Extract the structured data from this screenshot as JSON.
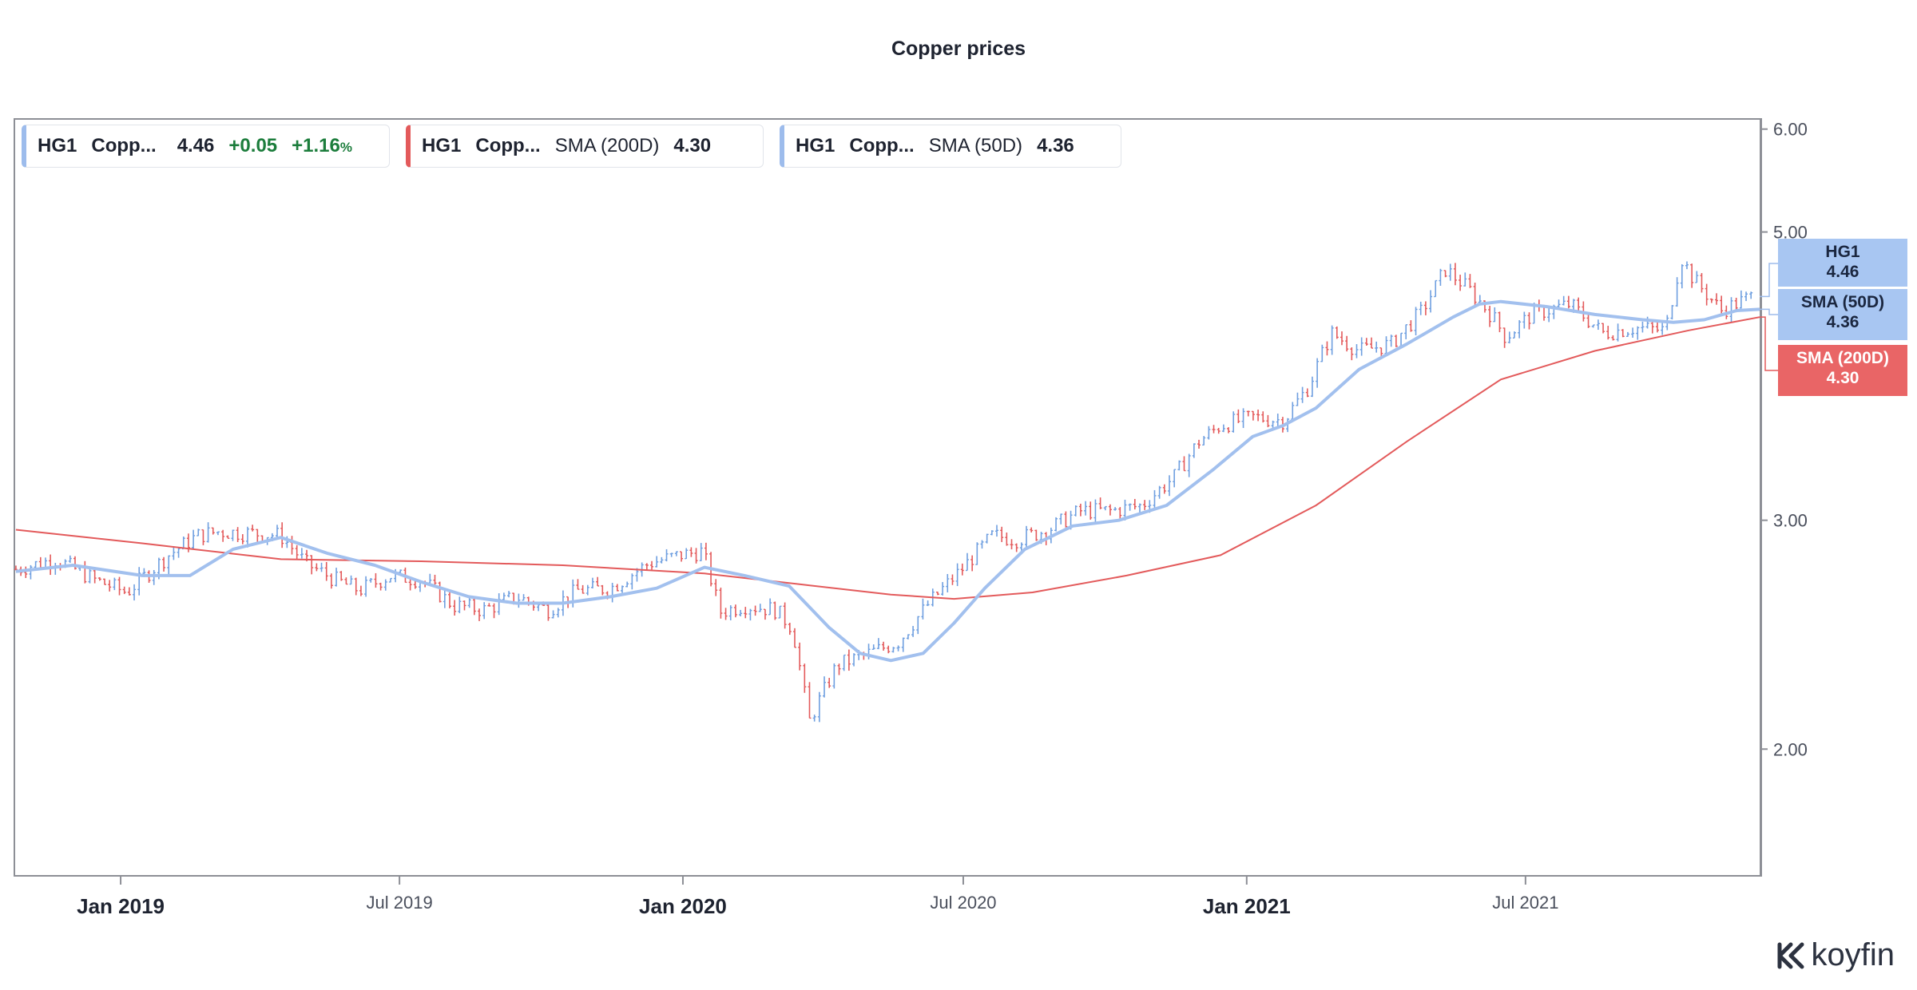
{
  "header": {
    "title": "Copper prices"
  },
  "legend": [
    {
      "ticker": "HG1",
      "name": "Copp...",
      "value": "4.46",
      "change": "+0.05",
      "change_pct": "+1.16",
      "pct_symbol": "%",
      "color": "#9dbcec"
    },
    {
      "ticker": "HG1",
      "name": "Copp...",
      "indicator": "SMA (200D)",
      "value": "4.30",
      "color": "#e35a5b"
    },
    {
      "ticker": "HG1",
      "name": "Copp...",
      "indicator": "SMA (50D)",
      "value": "4.36",
      "color": "#9dbcec"
    }
  ],
  "price_tags": [
    {
      "label": "HG1",
      "value": "4.46",
      "color": "#a8c6f2"
    },
    {
      "label": "SMA (50D)",
      "value": "4.36",
      "color": "#a8c6f2"
    },
    {
      "label": "SMA (200D)",
      "value": "4.30",
      "color": "#e96566"
    }
  ],
  "brand": {
    "name": "koyfin"
  },
  "chart_data": {
    "type": "line",
    "title": "Copper prices",
    "y_scale": "log",
    "ylim": [
      1.6,
      6.1
    ],
    "y_ticks": [
      "6.00",
      "5.00",
      "3.00",
      "2.00"
    ],
    "y_tick_values": [
      6.0,
      5.0,
      3.0,
      2.0
    ],
    "x_ticks": [
      {
        "label": "Jan 2019",
        "date": "2019-01-01",
        "major": true
      },
      {
        "label": "Jul 2019",
        "date": "2019-07-01",
        "major": false
      },
      {
        "label": "Jan 2020",
        "date": "2020-01-01",
        "major": true
      },
      {
        "label": "Jul 2020",
        "date": "2020-07-01",
        "major": false
      },
      {
        "label": "Jan 2021",
        "date": "2021-01-01",
        "major": true
      },
      {
        "label": "Jul 2021",
        "date": "2021-07-01",
        "major": false
      }
    ],
    "xlim": [
      "2018-10-24",
      "2021-11-30"
    ],
    "colors": {
      "up": "#6f9fe0",
      "down": "#e35a5b",
      "sma50": "#a2c0ee",
      "sma200": "#e35a5b"
    },
    "series": [
      {
        "name": "HG1",
        "kind": "price",
        "x": [
          "2018-10-25",
          "2018-11-20",
          "2018-12-15",
          "2019-01-05",
          "2019-02-01",
          "2019-02-20",
          "2019-03-05",
          "2019-04-01",
          "2019-04-15",
          "2019-05-01",
          "2019-05-20",
          "2019-06-05",
          "2019-06-25",
          "2019-07-15",
          "2019-08-05",
          "2019-08-25",
          "2019-09-15",
          "2019-10-05",
          "2019-10-25",
          "2019-11-15",
          "2019-12-10",
          "2019-12-30",
          "2020-01-14",
          "2020-01-25",
          "2020-02-10",
          "2020-03-01",
          "2020-03-12",
          "2020-03-23",
          "2020-04-10",
          "2020-05-01",
          "2020-05-20",
          "2020-06-10",
          "2020-06-30",
          "2020-07-20",
          "2020-08-05",
          "2020-08-25",
          "2020-09-15",
          "2020-10-05",
          "2020-10-25",
          "2020-11-15",
          "2020-12-01",
          "2020-12-15",
          "2021-01-05",
          "2021-01-25",
          "2021-02-10",
          "2021-02-25",
          "2021-03-15",
          "2021-04-05",
          "2021-04-25",
          "2021-05-10",
          "2021-05-25",
          "2021-06-10",
          "2021-06-18",
          "2021-07-05",
          "2021-07-30",
          "2021-08-20",
          "2021-09-10",
          "2021-09-30",
          "2021-10-10",
          "2021-10-18",
          "2021-11-05",
          "2021-11-25"
        ],
        "y": [
          2.75,
          2.8,
          2.7,
          2.64,
          2.82,
          2.92,
          2.94,
          2.93,
          2.92,
          2.78,
          2.7,
          2.65,
          2.72,
          2.7,
          2.58,
          2.56,
          2.62,
          2.56,
          2.65,
          2.66,
          2.78,
          2.82,
          2.84,
          2.55,
          2.58,
          2.56,
          2.48,
          2.1,
          2.32,
          2.37,
          2.42,
          2.6,
          2.75,
          2.92,
          2.9,
          2.95,
          3.05,
          3.05,
          3.08,
          3.24,
          3.45,
          3.55,
          3.6,
          3.58,
          3.8,
          4.18,
          4.05,
          4.1,
          4.35,
          4.68,
          4.52,
          4.3,
          4.15,
          4.32,
          4.4,
          4.18,
          4.22,
          4.2,
          4.78,
          4.6,
          4.35,
          4.46
        ]
      },
      {
        "name": "SMA (50D)",
        "kind": "sma50",
        "x": [
          "2018-10-25",
          "2018-12-01",
          "2019-01-15",
          "2019-02-15",
          "2019-03-15",
          "2019-04-15",
          "2019-05-15",
          "2019-06-15",
          "2019-07-15",
          "2019-08-15",
          "2019-09-15",
          "2019-10-15",
          "2019-11-15",
          "2019-12-15",
          "2020-01-15",
          "2020-02-10",
          "2020-03-10",
          "2020-04-05",
          "2020-04-25",
          "2020-05-15",
          "2020-06-05",
          "2020-06-25",
          "2020-07-15",
          "2020-08-10",
          "2020-09-10",
          "2020-10-10",
          "2020-11-10",
          "2020-12-10",
          "2021-01-05",
          "2021-01-25",
          "2021-02-15",
          "2021-03-15",
          "2021-04-15",
          "2021-05-15",
          "2021-06-01",
          "2021-06-15",
          "2021-07-15",
          "2021-08-15",
          "2021-09-15",
          "2021-10-05",
          "2021-10-25",
          "2021-11-15",
          "2021-11-30"
        ],
        "y": [
          2.74,
          2.77,
          2.72,
          2.72,
          2.85,
          2.91,
          2.83,
          2.77,
          2.69,
          2.62,
          2.59,
          2.59,
          2.62,
          2.66,
          2.76,
          2.72,
          2.67,
          2.48,
          2.37,
          2.34,
          2.37,
          2.5,
          2.66,
          2.85,
          2.97,
          3.0,
          3.08,
          3.28,
          3.48,
          3.55,
          3.66,
          3.92,
          4.1,
          4.3,
          4.4,
          4.42,
          4.38,
          4.32,
          4.28,
          4.26,
          4.28,
          4.35,
          4.36
        ]
      },
      {
        "name": "SMA (200D)",
        "kind": "sma200",
        "x": [
          "2018-10-25",
          "2019-01-15",
          "2019-04-15",
          "2019-07-15",
          "2019-10-15",
          "2020-01-15",
          "2020-03-15",
          "2020-05-15",
          "2020-06-25",
          "2020-08-15",
          "2020-10-15",
          "2020-12-15",
          "2021-02-15",
          "2021-04-15",
          "2021-06-15",
          "2021-08-15",
          "2021-10-15",
          "2021-11-30"
        ],
        "y": [
          2.95,
          2.88,
          2.8,
          2.79,
          2.77,
          2.73,
          2.68,
          2.63,
          2.61,
          2.64,
          2.72,
          2.82,
          3.08,
          3.45,
          3.85,
          4.05,
          4.2,
          4.3
        ]
      }
    ]
  }
}
